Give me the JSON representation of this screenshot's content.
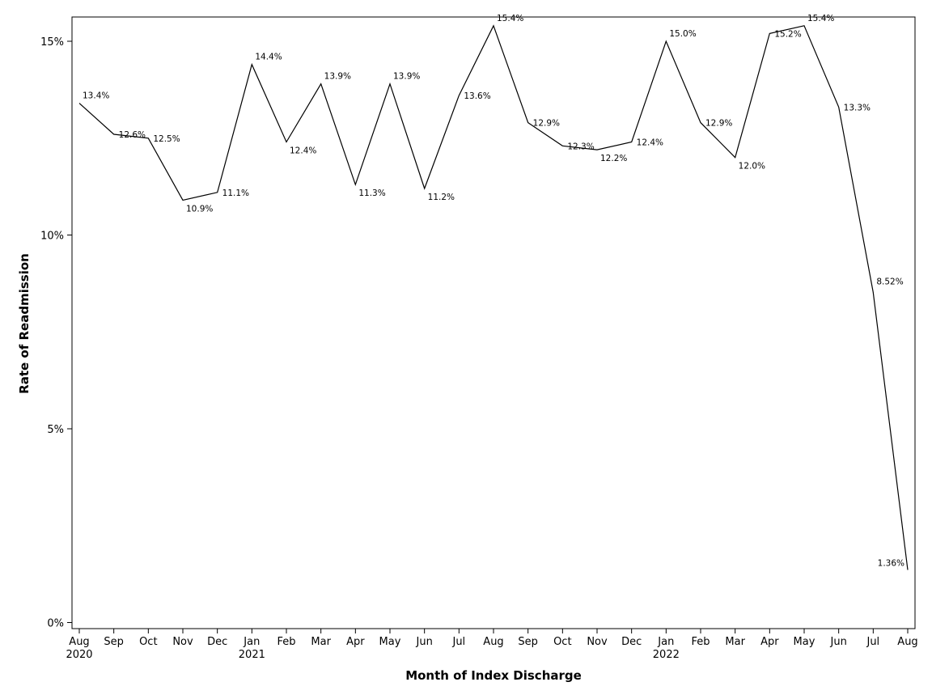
{
  "chart_data": {
    "type": "line",
    "xlabel": "Month of Index Discharge",
    "ylabel": "Rate of Readmission",
    "ylim": [
      0,
      15.8
    ],
    "y_ticks": [
      {
        "value": 0,
        "label": "0%"
      },
      {
        "value": 5,
        "label": "5%"
      },
      {
        "value": 10,
        "label": "10%"
      },
      {
        "value": 15,
        "label": "15%"
      }
    ],
    "grid": false,
    "line_color": "#000000",
    "categories": [
      "Aug",
      "Sep",
      "Oct",
      "Nov",
      "Dec",
      "Jan",
      "Feb",
      "Mar",
      "Apr",
      "May",
      "Jun",
      "Jul",
      "Aug",
      "Sep",
      "Oct",
      "Nov",
      "Dec",
      "Jan",
      "Feb",
      "Mar",
      "Apr",
      "May",
      "Jun",
      "Jul",
      "Aug"
    ],
    "year_labels": [
      {
        "index": 0,
        "label": "2020"
      },
      {
        "index": 5,
        "label": "2021"
      },
      {
        "index": 17,
        "label": "2022"
      }
    ],
    "series": [
      {
        "values": [
          13.4,
          12.6,
          12.5,
          10.9,
          11.1,
          14.4,
          12.4,
          13.9,
          11.3,
          13.9,
          11.2,
          13.6,
          15.4,
          12.9,
          12.3,
          12.2,
          12.4,
          15.0,
          12.9,
          12.0,
          15.2,
          15.4,
          13.3,
          8.52,
          1.36
        ],
        "labels": [
          "13.4%",
          "12.6%",
          "12.5%",
          "10.9%",
          "11.1%",
          "14.4%",
          "12.4%",
          "13.9%",
          "11.3%",
          "13.9%",
          "11.2%",
          "13.6%",
          "15.4%",
          "12.9%",
          "12.3%",
          "12.2%",
          "12.4%",
          "15.0%",
          "12.9%",
          "12.0%",
          "15.2%",
          "15.4%",
          "13.3%",
          "8.52%",
          "1.36%"
        ]
      }
    ]
  }
}
